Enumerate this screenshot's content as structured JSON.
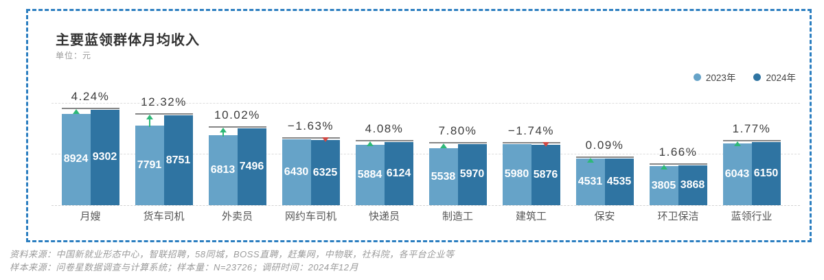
{
  "panel": {
    "title": "主要蓝领群体月均收入",
    "subtitle": "单位：元",
    "border_color": "#2b7ec0"
  },
  "legend": [
    {
      "label": "2023年",
      "color": "#66a3c8"
    },
    {
      "label": "2024年",
      "color": "#2f74a2"
    }
  ],
  "chart_data": {
    "type": "bar",
    "title": "主要蓝领群体月均收入",
    "unit_label": "单位：元",
    "categories": [
      "月嫂",
      "货车司机",
      "外卖员",
      "网约车司机",
      "快递员",
      "制造工",
      "建筑工",
      "保安",
      "环卫保洁",
      "蓝领行业"
    ],
    "series": [
      {
        "name": "2023年",
        "color": "#66a3c8",
        "values": [
          8924,
          7791,
          6813,
          6430,
          5884,
          5538,
          5980,
          4531,
          3805,
          6043
        ]
      },
      {
        "name": "2024年",
        "color": "#2f74a2",
        "values": [
          9302,
          8751,
          7496,
          6325,
          6124,
          5970,
          5876,
          4535,
          3868,
          6150
        ]
      }
    ],
    "change_percent": [
      4.24,
      12.32,
      10.02,
      -1.63,
      4.08,
      7.8,
      -1.74,
      0.09,
      1.66,
      1.77
    ],
    "change_positive_color": "#2eb878",
    "change_negative_color": "#cf4a45",
    "ylim": [
      0,
      10000
    ],
    "gridline_values": [
      5000,
      10000
    ],
    "grid_style": "dashed",
    "legend_position": "top-right",
    "value_labels": "inside-white",
    "xlabel": "",
    "ylabel": ""
  },
  "footer": {
    "line1": "资料来源：中国新就业形态中心，智联招聘，58同城，BOSS直聘，赶集网，中物联，社科院，各平台企业等",
    "line2": "样本来源：问卷星数据调查与计算系统；样本量：N=23726；调研时间：2024年12月"
  }
}
